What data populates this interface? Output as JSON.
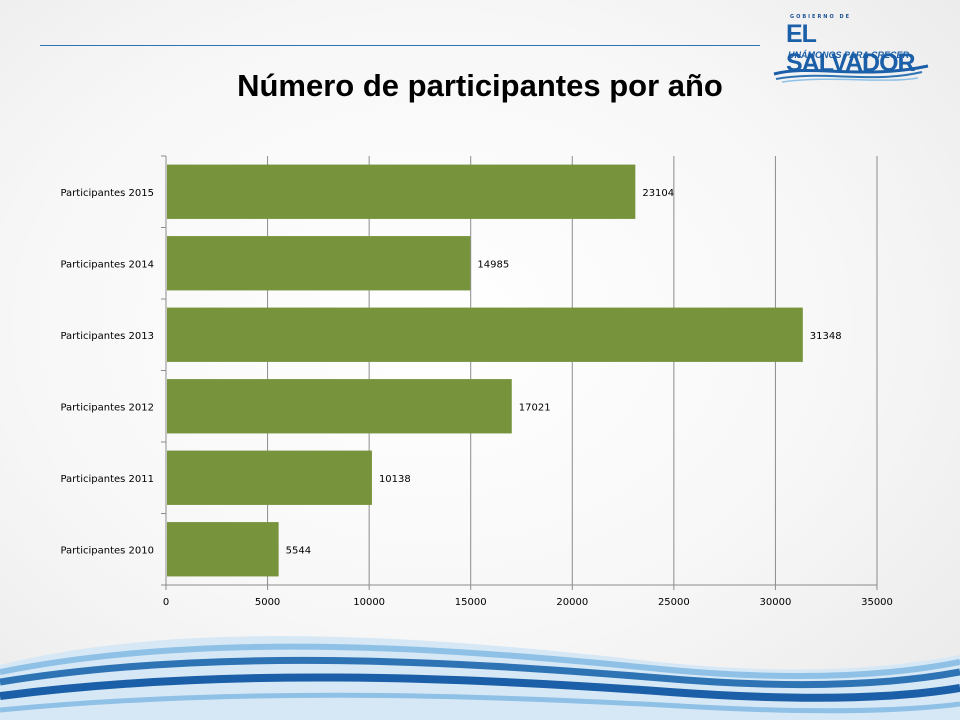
{
  "title": "Número de participantes por año",
  "logo": {
    "top_text": "GOBIERNO DE",
    "name": "EL SALVADOR",
    "tagline": "UNÁMONOS PARA CRECER"
  },
  "colors": {
    "bar": "#77933c",
    "rule": "#2e74b5",
    "wave_dark": "#1b5fa8",
    "wave_light": "#8fc1e6"
  },
  "chart_data": {
    "type": "bar",
    "orientation": "horizontal",
    "title": "Número de participantes por año",
    "categories": [
      "Participantes 2015",
      "Participantes 2014",
      "Participantes 2013",
      "Participantes 2012",
      "Participantes 2011",
      "Participantes 2010"
    ],
    "values": [
      23104,
      14985,
      31348,
      17021,
      10138,
      5544
    ],
    "xlim": [
      0,
      35000
    ],
    "xticks": [
      "0",
      "5000",
      "10000",
      "15000",
      "20000",
      "25000",
      "30000",
      "35000"
    ],
    "xtick_values": [
      0,
      5000,
      10000,
      15000,
      20000,
      25000,
      30000,
      35000
    ],
    "grid": "vertical",
    "legend": "none",
    "data_labels": true
  }
}
